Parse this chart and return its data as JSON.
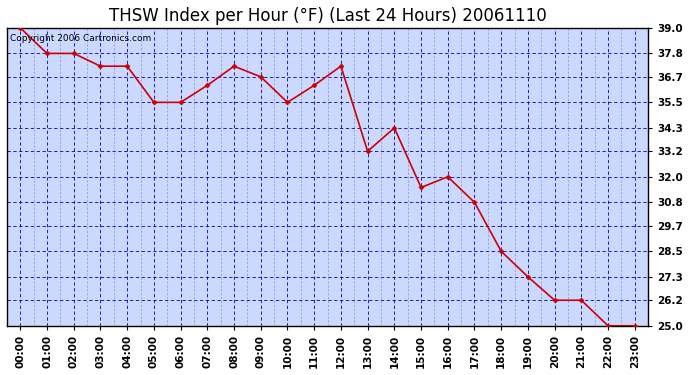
{
  "title": "THSW Index per Hour (°F) (Last 24 Hours) 20061110",
  "copyright": "Copyright 2006 Cartronics.com",
  "hours": [
    "00:00",
    "01:00",
    "02:00",
    "03:00",
    "04:00",
    "05:00",
    "06:00",
    "07:00",
    "08:00",
    "09:00",
    "10:00",
    "11:00",
    "12:00",
    "13:00",
    "14:00",
    "15:00",
    "16:00",
    "17:00",
    "18:00",
    "19:00",
    "20:00",
    "21:00",
    "22:00",
    "23:00"
  ],
  "values": [
    39.0,
    37.8,
    37.8,
    37.2,
    37.2,
    35.5,
    35.5,
    36.3,
    37.2,
    36.7,
    35.5,
    36.3,
    37.2,
    33.2,
    34.3,
    31.5,
    32.0,
    30.8,
    28.5,
    27.3,
    26.2,
    26.2,
    25.0,
    25.0
  ],
  "line_color": "#cc0000",
  "marker_color": "#cc0000",
  "fig_bg_color": "#ffffff",
  "plot_bg_color": "#ccd9ff",
  "grid_color_major": "#0000bb",
  "grid_color_minor": "#7777cc",
  "ylim_min": 25.0,
  "ylim_max": 39.0,
  "yticks": [
    25.0,
    26.2,
    27.3,
    28.5,
    29.7,
    30.8,
    32.0,
    33.2,
    34.3,
    35.5,
    36.7,
    37.8,
    39.0
  ],
  "title_fontsize": 12,
  "tick_fontsize": 7.5,
  "copyright_fontsize": 6.5
}
